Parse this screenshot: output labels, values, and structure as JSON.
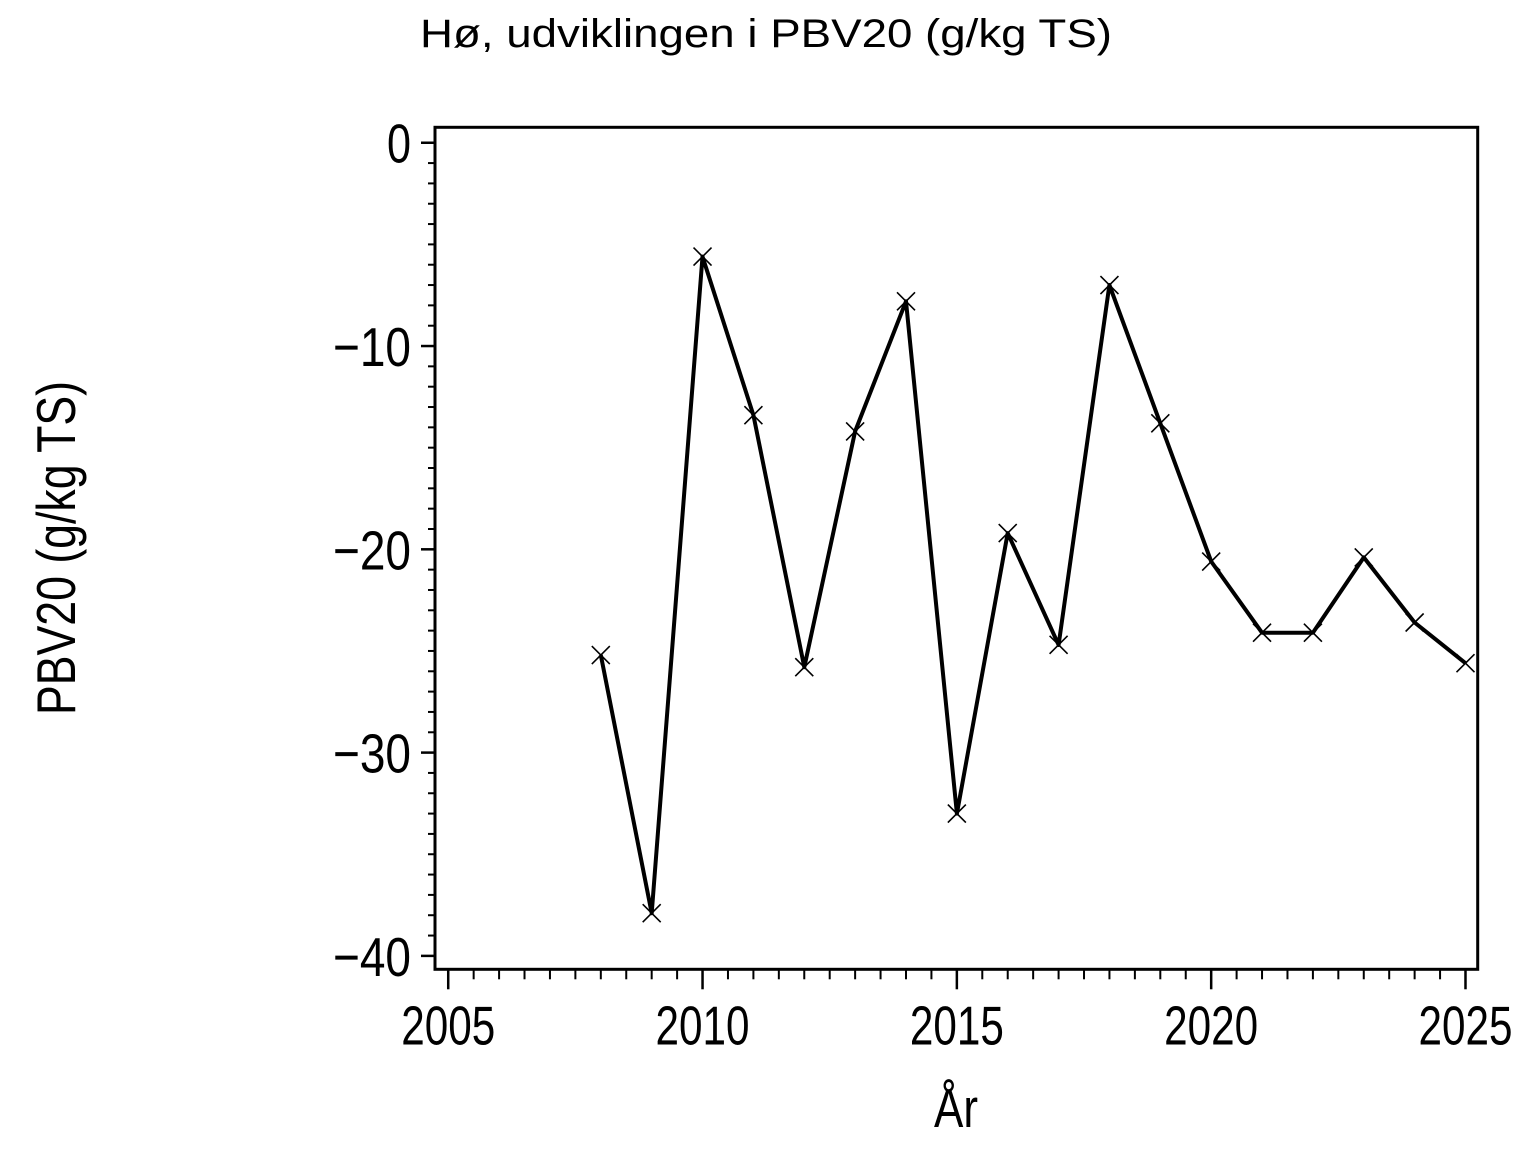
{
  "figure": {
    "background": "#ffffff",
    "ink": "#000000"
  },
  "chart_data": {
    "type": "line",
    "title": "Hø, udviklingen i PBV20 (g/kg TS)",
    "xlabel": "År",
    "ylabel": "PBV20 (g/kg TS)",
    "grid": false,
    "legend": false,
    "xlim": [
      2004.74,
      2025.24
    ],
    "ylim": [
      -40.66,
      0.76
    ],
    "x_ticks_major": [
      2005,
      2010,
      2015,
      2020,
      2025
    ],
    "x_tick_labels": [
      "2005",
      "2010",
      "2015",
      "2020",
      "2025"
    ],
    "x_minor_step": 0.5,
    "y_ticks_major": [
      0,
      -10,
      -20,
      -30,
      -40
    ],
    "y_tick_labels": [
      "0",
      "−10",
      "−20",
      "−30",
      "−40"
    ],
    "y_minor_step": 1,
    "series": [
      {
        "name": "PBV20",
        "marker": "x",
        "color": "#000000",
        "x": [
          2008,
          2009,
          2010,
          2011,
          2012,
          2013,
          2014,
          2015,
          2016,
          2017,
          2018,
          2019,
          2020,
          2021,
          2022,
          2023,
          2024,
          2025
        ],
        "y": [
          -25.2,
          -37.9,
          -5.6,
          -13.4,
          -25.8,
          -14.2,
          -7.8,
          -33.0,
          -19.2,
          -24.7,
          -7.0,
          -13.8,
          -20.6,
          -24.1,
          -24.1,
          -20.4,
          -23.6,
          -25.6
        ]
      }
    ]
  }
}
